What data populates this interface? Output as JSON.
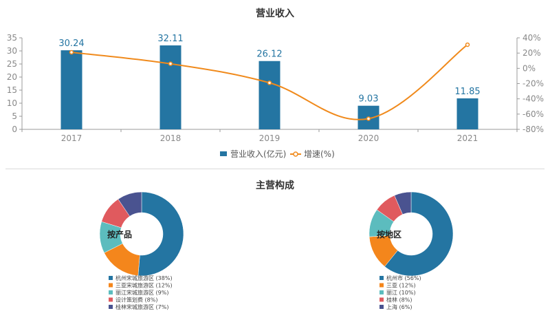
{
  "chart_title": "营业收入",
  "section_title": "主营构成",
  "colors": {
    "bar": "#2475a2",
    "line": "#f08a1c",
    "pie": [
      "#2475a2",
      "#f4861c",
      "#5cbcbe",
      "#e05a5e",
      "#4a5390"
    ]
  },
  "chart_data": [
    {
      "type": "bar",
      "title": "营业收入",
      "categories": [
        "2017",
        "2018",
        "2019",
        "2020",
        "2021"
      ],
      "series": [
        {
          "name": "营业收入(亿元)",
          "type": "bar",
          "axis": "left",
          "values": [
            30.24,
            32.11,
            26.12,
            9.03,
            11.85
          ]
        },
        {
          "name": "增速(%)",
          "type": "line",
          "axis": "right",
          "values": [
            21,
            6,
            -19,
            -66,
            31
          ]
        }
      ],
      "y_left": {
        "min": 0,
        "max": 35,
        "ticks": [
          "0",
          "5",
          "10",
          "15",
          "20",
          "25",
          "30",
          "35"
        ]
      },
      "y_right": {
        "min": -80,
        "max": 40,
        "ticks": [
          "-80%",
          "-60%",
          "-40%",
          "-20%",
          "0%",
          "20%",
          "40%"
        ]
      },
      "legend_position": "bottom"
    },
    {
      "type": "pie",
      "center_label": "按产品",
      "slices": [
        {
          "label": "杭州宋城旅游区 (38%)",
          "value": 38
        },
        {
          "label": "三亚宋城旅游区 (12%)",
          "value": 12
        },
        {
          "label": "丽江宋城旅游区 (9%)",
          "value": 9
        },
        {
          "label": "设计策划费 (8%)",
          "value": 8
        },
        {
          "label": "桂林宋城旅游区 (7%)",
          "value": 7
        }
      ]
    },
    {
      "type": "pie",
      "center_label": "按地区",
      "slices": [
        {
          "label": "杭州市 (56%)",
          "value": 56
        },
        {
          "label": "三亚 (12%)",
          "value": 12
        },
        {
          "label": "丽江 (10%)",
          "value": 10
        },
        {
          "label": "桂林 (8%)",
          "value": 8
        },
        {
          "label": "上海 (6%)",
          "value": 6
        }
      ]
    }
  ]
}
